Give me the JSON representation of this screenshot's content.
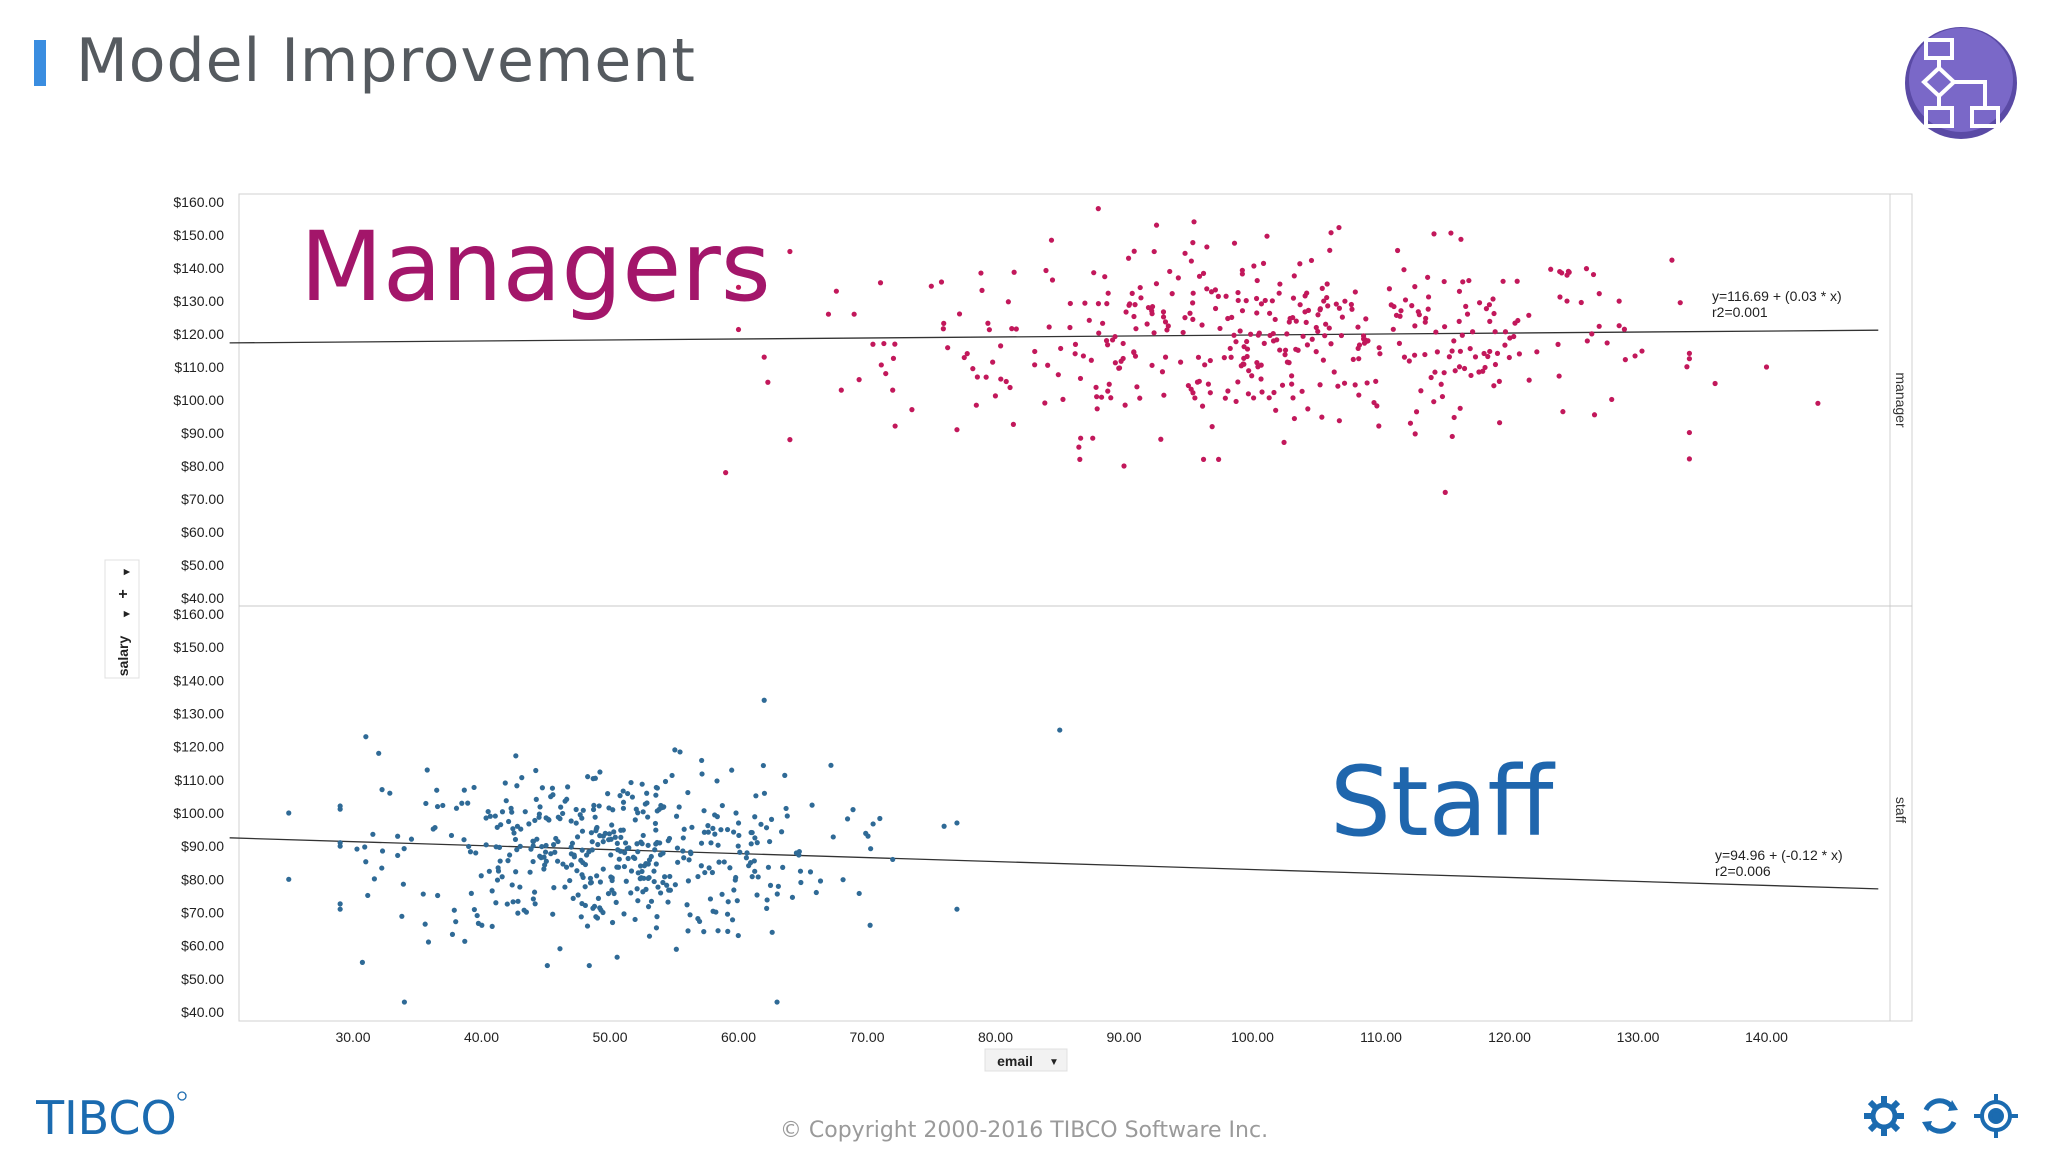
{
  "slide": {
    "title": "Model Improvement",
    "copyright": "© Copyright 2000-2016 TIBCO Software Inc.",
    "logo": "TIBCO",
    "badge_icon": "flowchart-icon",
    "footer_icons": [
      "gear-icon",
      "cycle-icon",
      "target-icon"
    ]
  },
  "colors": {
    "accent": "#3a8de0",
    "badge": "#6a5bb5",
    "managers": "#c2185b",
    "staff": "#2f6a96",
    "managers_label": "#a3166a",
    "staff_label": "#1f66ad",
    "tibco": "#1b6bb0"
  },
  "chart_data": {
    "type": "scatter",
    "xlabel": "email",
    "ylabel": "salary",
    "xlim": [
      20,
      148
    ],
    "x_ticks": [
      30,
      40,
      50,
      60,
      70,
      80,
      90,
      100,
      110,
      120,
      130,
      140
    ],
    "x_tick_labels": [
      "30.00",
      "40.00",
      "50.00",
      "60.00",
      "70.00",
      "80.00",
      "90.00",
      "100.00",
      "110.00",
      "120.00",
      "130.00",
      "140.00"
    ],
    "y_ticks": [
      40,
      50,
      60,
      70,
      80,
      90,
      100,
      110,
      120,
      130,
      140,
      150,
      160
    ],
    "y_tick_labels": [
      "$40.00",
      "$50.00",
      "$60.00",
      "$70.00",
      "$80.00",
      "$90.00",
      "$100.00",
      "$110.00",
      "$120.00",
      "$130.00",
      "$140.00",
      "$150.00",
      "$160.00"
    ],
    "panels": [
      {
        "name": "manager",
        "annotation": "Managers",
        "ylim": [
          40,
          160
        ],
        "fit": {
          "intercept": 116.69,
          "slope": 0.03
        },
        "equation": "y=116.69 + (0.03 * x)",
        "r2": "r2=0.001",
        "cloud": {
          "x_center": 102,
          "x_spread": 15,
          "y_center": 118,
          "y_spread": 14,
          "count": 440,
          "x_min": 60,
          "x_max": 134,
          "y_min": 82,
          "y_max": 154
        },
        "points": [
          [
            59,
            78
          ],
          [
            64,
            88
          ],
          [
            64,
            145
          ],
          [
            88,
            158
          ],
          [
            115,
            72
          ],
          [
            90,
            80
          ],
          [
            136,
            105
          ],
          [
            140,
            110
          ],
          [
            144,
            99
          ],
          [
            77,
            91
          ],
          [
            69,
            126
          ],
          [
            72,
            103
          ],
          [
            68,
            103
          ],
          [
            67,
            126
          ],
          [
            62,
            113
          ]
        ]
      },
      {
        "name": "staff",
        "annotation": "Staff",
        "ylim": [
          40,
          160
        ],
        "fit": {
          "intercept": 94.96,
          "slope": -0.12
        },
        "equation": "y=94.96 + (-0.12 * x)",
        "r2": "r2=0.006",
        "cloud": {
          "x_center": 50,
          "x_spread": 8.5,
          "y_center": 88,
          "y_spread": 13,
          "count": 460,
          "x_min": 29,
          "x_max": 71,
          "y_min": 54,
          "y_max": 128
        },
        "points": [
          [
            25,
            100
          ],
          [
            25,
            80
          ],
          [
            29,
            71
          ],
          [
            29,
            90
          ],
          [
            34,
            43
          ],
          [
            63,
            43
          ],
          [
            62,
            134
          ],
          [
            85,
            125
          ],
          [
            77,
            71
          ],
          [
            76,
            96
          ],
          [
            77,
            97
          ],
          [
            72,
            86
          ],
          [
            31,
            123
          ],
          [
            32,
            118
          ]
        ]
      }
    ]
  }
}
